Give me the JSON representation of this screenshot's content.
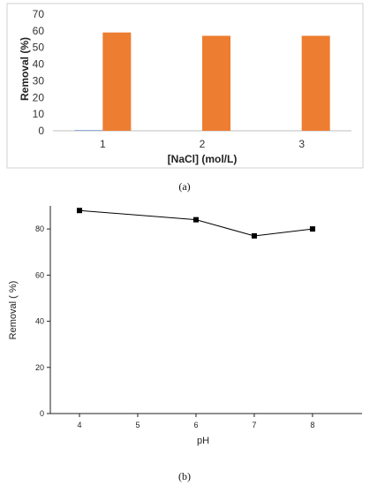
{
  "chart_data": [
    {
      "type": "bar",
      "title": "",
      "xlabel": "[NaCl] (mol/L)",
      "ylabel": "Removal (%)",
      "categories": [
        "1",
        "2",
        "3"
      ],
      "ylim": [
        0,
        70
      ],
      "yticks": [
        "0",
        "10",
        "20",
        "30",
        "40",
        "50",
        "60",
        "70"
      ],
      "series": [
        {
          "values": [
            0.3,
            0,
            0
          ],
          "color": "#4472c4"
        },
        {
          "values": [
            59,
            57,
            57
          ],
          "color": "#ed7d31"
        }
      ],
      "grid": false,
      "caption": "(a)"
    },
    {
      "type": "line",
      "title": "",
      "xlabel": "pH",
      "ylabel": "Removal (  %)",
      "x": [
        4,
        6,
        7,
        8
      ],
      "y": [
        88,
        84,
        77,
        80
      ],
      "xlim": [
        3.5,
        8.85
      ],
      "ylim": [
        0,
        90
      ],
      "xticks": [
        "4",
        "5",
        "6",
        "7",
        "8"
      ],
      "yticks": [
        "0",
        "20",
        "40",
        "60",
        "80"
      ],
      "marker": "square",
      "grid": false,
      "caption": "(b)"
    }
  ]
}
